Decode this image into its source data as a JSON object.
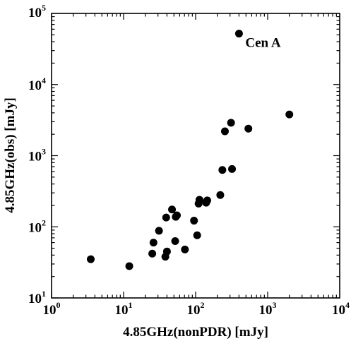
{
  "chart_data": {
    "type": "scatter",
    "xlabel": "4.85GHz(nonPDR) [mJy]",
    "ylabel": "4.85GHz(obs) [mJy]",
    "x_scale": "log",
    "y_scale": "log",
    "xlim": [
      1,
      10000
    ],
    "ylim": [
      10,
      100000
    ],
    "x_ticks": [
      {
        "base": "10",
        "exp": "0",
        "value": 1
      },
      {
        "base": "10",
        "exp": "1",
        "value": 10
      },
      {
        "base": "10",
        "exp": "2",
        "value": 100
      },
      {
        "base": "10",
        "exp": "3",
        "value": 1000
      },
      {
        "base": "10",
        "exp": "4",
        "value": 10000
      }
    ],
    "y_ticks": [
      {
        "base": "10",
        "exp": "1",
        "value": 10
      },
      {
        "base": "10",
        "exp": "2",
        "value": 100
      },
      {
        "base": "10",
        "exp": "3",
        "value": 1000
      },
      {
        "base": "10",
        "exp": "4",
        "value": 10000
      },
      {
        "base": "10",
        "exp": "5",
        "value": 100000
      }
    ],
    "grid": false,
    "marker_color": "#000000",
    "annotations": [
      {
        "text": "Cen A",
        "x": 400,
        "y": 52000
      }
    ],
    "points": [
      {
        "x": 3.5,
        "y": 35
      },
      {
        "x": 12,
        "y": 28
      },
      {
        "x": 25,
        "y": 42
      },
      {
        "x": 26,
        "y": 60
      },
      {
        "x": 31,
        "y": 88
      },
      {
        "x": 38,
        "y": 38
      },
      {
        "x": 39,
        "y": 135
      },
      {
        "x": 40,
        "y": 45
      },
      {
        "x": 47,
        "y": 175
      },
      {
        "x": 52,
        "y": 63
      },
      {
        "x": 53,
        "y": 138
      },
      {
        "x": 55,
        "y": 145
      },
      {
        "x": 71,
        "y": 48
      },
      {
        "x": 95,
        "y": 122
      },
      {
        "x": 105,
        "y": 76
      },
      {
        "x": 110,
        "y": 212
      },
      {
        "x": 113,
        "y": 240
      },
      {
        "x": 140,
        "y": 218
      },
      {
        "x": 145,
        "y": 235
      },
      {
        "x": 220,
        "y": 280
      },
      {
        "x": 235,
        "y": 630
      },
      {
        "x": 255,
        "y": 2200
      },
      {
        "x": 310,
        "y": 2900
      },
      {
        "x": 320,
        "y": 650
      },
      {
        "x": 400,
        "y": 52000
      },
      {
        "x": 540,
        "y": 2400
      },
      {
        "x": 2000,
        "y": 3800
      }
    ]
  }
}
